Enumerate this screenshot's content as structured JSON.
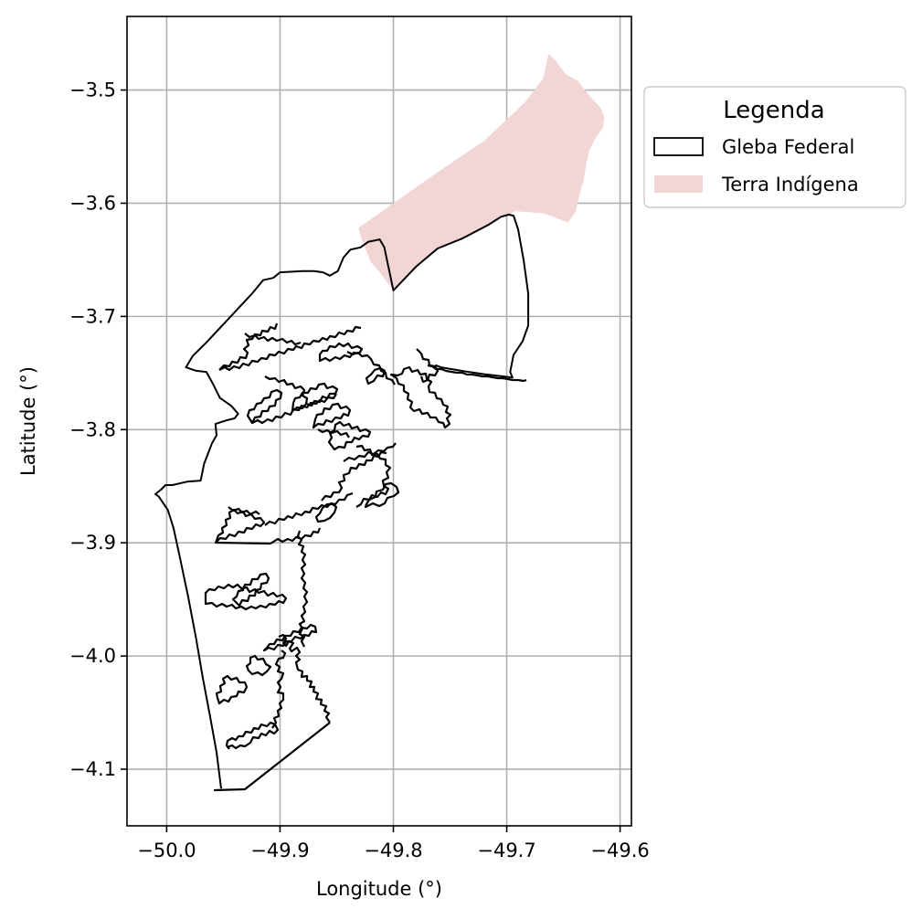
{
  "chart_data": {
    "type": "map",
    "xlabel": "Longitude (°)",
    "ylabel": "Latitude (°)",
    "xlim": [
      -50.035,
      -49.59
    ],
    "ylim": [
      -4.15,
      -3.435
    ],
    "grid": true,
    "x_ticks": [
      -50.0,
      -49.9,
      -49.8,
      -49.7,
      -49.6
    ],
    "x_tick_labels": [
      "−50.0",
      "−49.9",
      "−49.8",
      "−49.7",
      "−49.6"
    ],
    "y_ticks": [
      -3.5,
      -3.6,
      -3.7,
      -3.8,
      -3.9,
      -4.0,
      -4.1
    ],
    "y_tick_labels": [
      "−3.5",
      "−3.6",
      "−3.7",
      "−3.8",
      "−3.9",
      "−4.0",
      "−4.1"
    ],
    "legend": {
      "title": "Legenda",
      "placement": "outside-upper-right",
      "entries": [
        {
          "label": "Gleba Federal",
          "style": "outline",
          "edge_color": "#000000",
          "fill": "none"
        },
        {
          "label": "Terra Indígena",
          "style": "fill",
          "fill": "#f2d5d5"
        }
      ]
    },
    "layers": [
      {
        "name": "Terra Indígena",
        "fill": "#f2d5d5",
        "coordinates": [
          [
            -49.831,
            -3.622
          ],
          [
            -49.8,
            -3.6
          ],
          [
            -49.76,
            -3.572
          ],
          [
            -49.72,
            -3.545
          ],
          [
            -49.683,
            -3.51
          ],
          [
            -49.668,
            -3.49
          ],
          [
            -49.663,
            -3.468
          ],
          [
            -49.656,
            -3.475
          ],
          [
            -49.648,
            -3.486
          ],
          [
            -49.637,
            -3.492
          ],
          [
            -49.628,
            -3.504
          ],
          [
            -49.617,
            -3.516
          ],
          [
            -49.614,
            -3.524
          ],
          [
            -49.615,
            -3.533
          ],
          [
            -49.622,
            -3.543
          ],
          [
            -49.627,
            -3.553
          ],
          [
            -49.63,
            -3.566
          ],
          [
            -49.632,
            -3.579
          ],
          [
            -49.636,
            -3.593
          ],
          [
            -49.639,
            -3.607
          ],
          [
            -49.646,
            -3.617
          ],
          [
            -49.667,
            -3.609
          ],
          [
            -49.693,
            -3.607
          ],
          [
            -49.698,
            -3.61
          ],
          [
            -49.705,
            -3.612
          ],
          [
            -49.716,
            -3.619
          ],
          [
            -49.739,
            -3.631
          ],
          [
            -49.761,
            -3.64
          ],
          [
            -49.78,
            -3.656
          ],
          [
            -49.8,
            -3.677
          ],
          [
            -49.812,
            -3.661
          ],
          [
            -49.82,
            -3.652
          ],
          [
            -49.828,
            -3.632
          ],
          [
            -49.831,
            -3.622
          ]
        ]
      },
      {
        "name": "Gleba Federal",
        "edge_color": "#000000",
        "fill": "none",
        "coordinates": [
          [
            -49.952,
            -4.117
          ],
          [
            -49.956,
            -4.085
          ],
          [
            -49.962,
            -4.052
          ],
          [
            -49.968,
            -4.02
          ],
          [
            -49.974,
            -3.985
          ],
          [
            -49.981,
            -3.948
          ],
          [
            -49.989,
            -3.91
          ],
          [
            -49.994,
            -3.887
          ],
          [
            -49.999,
            -3.871
          ],
          [
            -50.007,
            -3.859
          ],
          [
            -50.01,
            -3.857
          ],
          [
            -50.005,
            -3.853
          ],
          [
            -50.001,
            -3.849
          ],
          [
            -49.995,
            -3.849
          ],
          [
            -49.982,
            -3.846
          ],
          [
            -49.97,
            -3.845
          ],
          [
            -49.967,
            -3.83
          ],
          [
            -49.96,
            -3.812
          ],
          [
            -49.956,
            -3.805
          ],
          [
            -49.957,
            -3.795
          ],
          [
            -49.948,
            -3.792
          ],
          [
            -49.94,
            -3.79
          ],
          [
            -49.937,
            -3.786
          ],
          [
            -49.943,
            -3.779
          ],
          [
            -49.953,
            -3.772
          ],
          [
            -49.96,
            -3.758
          ],
          [
            -49.965,
            -3.749
          ],
          [
            -49.974,
            -3.748
          ],
          [
            -49.983,
            -3.745
          ],
          [
            -49.977,
            -3.735
          ],
          [
            -49.965,
            -3.723
          ],
          [
            -49.95,
            -3.707
          ],
          [
            -49.937,
            -3.693
          ],
          [
            -49.924,
            -3.679
          ],
          [
            -49.915,
            -3.668
          ],
          [
            -49.906,
            -3.666
          ],
          [
            -49.9,
            -3.661
          ],
          [
            -49.88,
            -3.66
          ],
          [
            -49.87,
            -3.66
          ],
          [
            -49.862,
            -3.661
          ],
          [
            -49.856,
            -3.664
          ],
          [
            -49.849,
            -3.66
          ],
          [
            -49.844,
            -3.648
          ],
          [
            -49.838,
            -3.641
          ],
          [
            -49.829,
            -3.639
          ],
          [
            -49.822,
            -3.634
          ],
          [
            -49.812,
            -3.632
          ],
          [
            -49.808,
            -3.639
          ],
          [
            -49.8,
            -3.677
          ],
          [
            -49.78,
            -3.656
          ],
          [
            -49.761,
            -3.64
          ],
          [
            -49.739,
            -3.631
          ],
          [
            -49.716,
            -3.619
          ],
          [
            -49.705,
            -3.612
          ],
          [
            -49.698,
            -3.61
          ],
          [
            -49.694,
            -3.611
          ],
          [
            -49.69,
            -3.623
          ],
          [
            -49.685,
            -3.651
          ],
          [
            -49.681,
            -3.68
          ],
          [
            -49.681,
            -3.708
          ],
          [
            -49.686,
            -3.722
          ],
          [
            -49.694,
            -3.734
          ],
          [
            -49.697,
            -3.749
          ],
          [
            -49.695,
            -3.754
          ],
          [
            -49.72,
            -3.751
          ],
          [
            -49.74,
            -3.748
          ],
          [
            -49.758,
            -3.745
          ],
          [
            -49.763,
            -3.743
          ]
        ]
      }
    ]
  }
}
